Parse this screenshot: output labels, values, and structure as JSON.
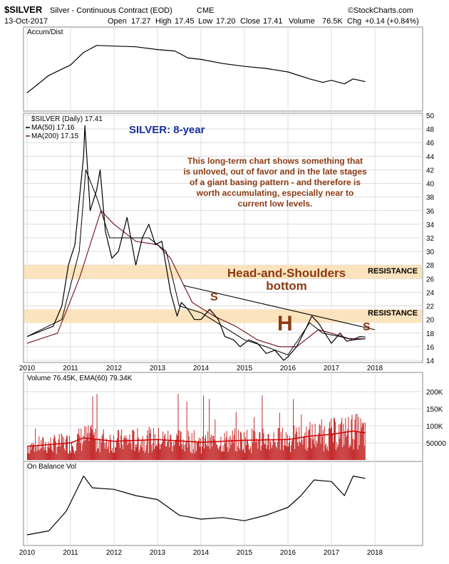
{
  "header": {
    "symbol": "$SILVER",
    "description": "Silver - Continuous Contract (EOD)",
    "exchange": "CME",
    "date": "13-Oct-2017",
    "open_label": "Open",
    "open": "17.27",
    "high_label": "High",
    "high": "17.45",
    "low_label": "Low",
    "low": "17.20",
    "close_label": "Close",
    "close": "17.41",
    "volume_label": "Volume",
    "volume": "76.5K",
    "chg_label": "Chg",
    "chg": "+0.14 (+0.84%)",
    "source": "©StockCharts.com"
  },
  "panels": {
    "accum_label": "Accum/Dist",
    "price_label": "$SILVER (Daily) 17.41",
    "ma50_label": "MA(50) 17.16",
    "ma200_label": "MA(200) 17.15",
    "volume_label": "Volume 76.45K, EMA(60) 79.34K",
    "obv_label": "On Balance Vol"
  },
  "annotations": {
    "title": "SILVER: 8-year",
    "comment_lines": [
      "This long-term chart shows something that",
      "is unloved, out of favor and in the late stages",
      "of a giant basing pattern - and therefore is",
      "worth accumulating, especially near to",
      "current low levels."
    ],
    "pattern_line1": "Head-and-Shoulders",
    "pattern_line2": "bottom",
    "resistance_upper": "RESISTANCE",
    "resistance_lower": "RESISTANCE",
    "left_shoulder": "S",
    "head": "H",
    "right_shoulder": "S"
  },
  "colors": {
    "price": "#000000",
    "ma50": "#000000",
    "ma200": "#7a1f2b",
    "volume_bar": "#c42b2b",
    "volume_ema": "#d40000",
    "resistance_band": "#fbe3bd",
    "annotation_text": "#8b3a12",
    "title_text": "#1a2e9c",
    "grid": "#dcdcdc"
  },
  "chart_data": {
    "type": "line",
    "x_ticks": [
      "2010",
      "2011",
      "2012",
      "2013",
      "2014",
      "2015",
      "2016",
      "2017",
      "2018"
    ],
    "price": {
      "ylim": [
        14,
        50
      ],
      "y_ticks": [
        14,
        16,
        18,
        20,
        22,
        24,
        26,
        28,
        30,
        32,
        34,
        36,
        38,
        40,
        42,
        44,
        46,
        48,
        50
      ],
      "series": [
        {
          "name": "$SILVER",
          "x": [
            2010.0,
            2010.2,
            2010.4,
            2010.6,
            2010.8,
            2010.95,
            2011.1,
            2011.3,
            2011.33,
            2011.45,
            2011.6,
            2011.68,
            2011.8,
            2011.95,
            2012.1,
            2012.3,
            2012.5,
            2012.65,
            2012.8,
            2012.95,
            2013.1,
            2013.3,
            2013.45,
            2013.55,
            2013.7,
            2013.85,
            2014.0,
            2014.2,
            2014.4,
            2014.55,
            2014.75,
            2014.9,
            2015.1,
            2015.3,
            2015.5,
            2015.7,
            2015.9,
            2016.0,
            2016.2,
            2016.4,
            2016.55,
            2016.7,
            2016.9,
            2017.0,
            2017.2,
            2017.35,
            2017.5,
            2017.65,
            2017.78
          ],
          "values": [
            17.5,
            18.0,
            18.5,
            19.0,
            22.0,
            28.0,
            31.0,
            44.0,
            48.5,
            36.0,
            39.0,
            42.0,
            33.0,
            29.0,
            30.0,
            35.0,
            28.0,
            32.0,
            34.0,
            31.0,
            31.5,
            24.0,
            20.5,
            22.5,
            21.5,
            20.0,
            20.0,
            21.5,
            20.0,
            17.5,
            17.0,
            16.0,
            17.0,
            16.5,
            15.0,
            15.5,
            14.0,
            14.5,
            16.0,
            18.5,
            20.5,
            19.5,
            17.5,
            16.5,
            18.0,
            16.8,
            17.0,
            17.5,
            17.41
          ]
        },
        {
          "name": "MA(50)",
          "x": [
            2010.0,
            2010.8,
            2011.2,
            2011.35,
            2011.6,
            2011.9,
            2012.3,
            2012.8,
            2013.2,
            2013.5,
            2014.0,
            2014.5,
            2015.0,
            2015.5,
            2016.0,
            2016.5,
            2016.8,
            2017.2,
            2017.5,
            2017.78
          ],
          "values": [
            17.5,
            20.0,
            30.0,
            42.0,
            38.0,
            32.0,
            32.0,
            32.0,
            30.0,
            22.0,
            21.0,
            19.0,
            17.0,
            16.0,
            14.8,
            19.5,
            18.0,
            17.5,
            17.0,
            17.16
          ]
        },
        {
          "name": "MA(200)",
          "x": [
            2010.0,
            2010.7,
            2011.2,
            2011.7,
            2012.0,
            2012.5,
            2013.0,
            2013.3,
            2013.8,
            2014.3,
            2014.8,
            2015.3,
            2015.8,
            2016.2,
            2016.7,
            2017.0,
            2017.4,
            2017.78
          ],
          "values": [
            16.5,
            18.0,
            26.0,
            36.0,
            34.0,
            31.5,
            31.0,
            29.0,
            22.5,
            20.5,
            19.0,
            17.0,
            16.0,
            16.0,
            18.5,
            18.0,
            17.2,
            17.15
          ]
        }
      ]
    },
    "resistance_bands": [
      [
        26.0,
        28.0
      ],
      [
        19.5,
        21.5
      ]
    ],
    "neckline": {
      "x": [
        2013.6,
        2018.0
      ],
      "y": [
        25.0,
        18.5
      ]
    },
    "accum_dist": {
      "x": [
        2010.0,
        2010.5,
        2011.0,
        2011.3,
        2011.6,
        2012.0,
        2012.5,
        2013.0,
        2013.4,
        2013.7,
        2014.0,
        2014.5,
        2015.0,
        2015.5,
        2016.0,
        2016.5,
        2016.8,
        2017.0,
        2017.3,
        2017.5,
        2017.78
      ],
      "values": [
        20,
        45,
        60,
        78,
        88,
        87,
        86,
        82,
        80,
        70,
        68,
        62,
        58,
        55,
        50,
        40,
        35,
        38,
        33,
        40,
        36
      ]
    },
    "volume": {
      "ylim": [
        0,
        250000
      ],
      "y_ticks": [
        50000,
        100000,
        150000,
        200000
      ],
      "y_tick_labels": [
        "50000",
        "100K",
        "150K",
        "200K"
      ],
      "ema_x": [
        2010.0,
        2011.0,
        2011.3,
        2012.0,
        2013.0,
        2014.0,
        2015.0,
        2016.0,
        2016.5,
        2017.0,
        2017.5,
        2017.78
      ],
      "ema_values": [
        40000,
        50000,
        65000,
        55000,
        60000,
        52000,
        58000,
        60000,
        70000,
        75000,
        85000,
        79340
      ]
    },
    "on_balance_volume": {
      "x": [
        2010.0,
        2010.5,
        2010.9,
        2011.3,
        2011.5,
        2012.0,
        2012.5,
        2013.0,
        2013.5,
        2014.0,
        2014.5,
        2015.0,
        2015.5,
        2016.0,
        2016.3,
        2016.6,
        2017.0,
        2017.3,
        2017.5,
        2017.78
      ],
      "values": [
        10,
        15,
        40,
        85,
        70,
        68,
        60,
        55,
        35,
        30,
        32,
        28,
        35,
        45,
        60,
        80,
        78,
        60,
        85,
        82
      ]
    }
  }
}
